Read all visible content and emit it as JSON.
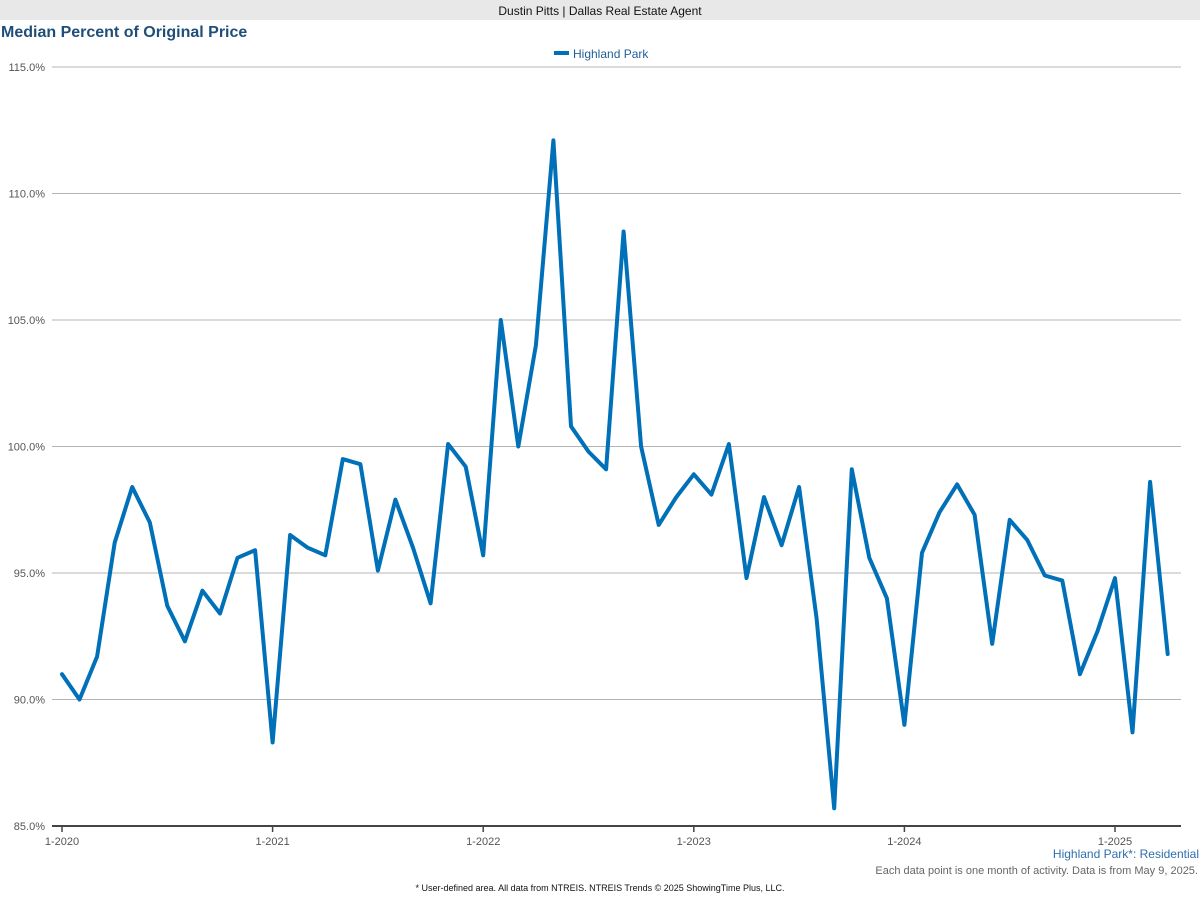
{
  "header": {
    "agent_banner": "Dustin Pitts | Dallas Real Estate Agent",
    "chart_title": "Median Percent of Original Price"
  },
  "footer": {
    "area_label": "Highland Park*: Residential",
    "note": "Each data point is one month of activity. Data is from May 9, 2025.",
    "source": "* User-defined area. All data from NTREIS. NTREIS Trends © 2025 ShowingTime Plus, LLC."
  },
  "colors": {
    "series": "#0070b8",
    "grid": "#b4b4b4",
    "axis": "#444444",
    "tick_text": "#555555",
    "title": "#1f4e79"
  },
  "chart_data": {
    "type": "line",
    "title": "Median Percent of Original Price",
    "xlabel": "",
    "ylabel": "",
    "ylim": [
      85.0,
      115.0
    ],
    "y_ticks": [
      "85.0%",
      "90.0%",
      "95.0%",
      "100.0%",
      "105.0%",
      "110.0%",
      "115.0%"
    ],
    "x_ticks": [
      "1-2020",
      "1-2021",
      "1-2022",
      "1-2023",
      "1-2024",
      "1-2025"
    ],
    "grid": true,
    "legend_position": "top-center",
    "x": [
      "1-2020",
      "2-2020",
      "3-2020",
      "4-2020",
      "5-2020",
      "6-2020",
      "7-2020",
      "8-2020",
      "9-2020",
      "10-2020",
      "11-2020",
      "12-2020",
      "1-2021",
      "2-2021",
      "3-2021",
      "4-2021",
      "5-2021",
      "6-2021",
      "7-2021",
      "8-2021",
      "9-2021",
      "10-2021",
      "11-2021",
      "12-2021",
      "1-2022",
      "2-2022",
      "3-2022",
      "4-2022",
      "5-2022",
      "6-2022",
      "7-2022",
      "8-2022",
      "9-2022",
      "10-2022",
      "11-2022",
      "12-2022",
      "1-2023",
      "2-2023",
      "3-2023",
      "4-2023",
      "5-2023",
      "6-2023",
      "7-2023",
      "8-2023",
      "9-2023",
      "10-2023",
      "11-2023",
      "12-2023",
      "1-2024",
      "2-2024",
      "3-2024",
      "4-2024",
      "5-2024",
      "6-2024",
      "7-2024",
      "8-2024",
      "9-2024",
      "10-2024",
      "11-2024",
      "12-2024",
      "1-2025",
      "2-2025",
      "3-2025",
      "4-2025"
    ],
    "series": [
      {
        "name": "Highland Park",
        "values": [
          91.0,
          90.0,
          91.7,
          96.2,
          98.4,
          97.0,
          93.7,
          92.3,
          94.3,
          93.4,
          95.6,
          95.9,
          88.3,
          96.5,
          96.0,
          95.7,
          99.5,
          99.3,
          95.1,
          97.9,
          96.0,
          93.8,
          100.1,
          99.2,
          95.7,
          105.0,
          100.0,
          104.0,
          112.1,
          100.8,
          99.8,
          99.1,
          108.5,
          100.0,
          96.9,
          98.0,
          98.9,
          98.1,
          100.1,
          94.8,
          98.0,
          96.1,
          98.4,
          93.2,
          85.7,
          99.1,
          95.6,
          94.0,
          89.0,
          95.8,
          97.4,
          98.5,
          97.3,
          92.2,
          97.1,
          96.3,
          94.9,
          94.7,
          91.0,
          92.7,
          94.8,
          88.7,
          98.6,
          91.8
        ]
      }
    ]
  }
}
